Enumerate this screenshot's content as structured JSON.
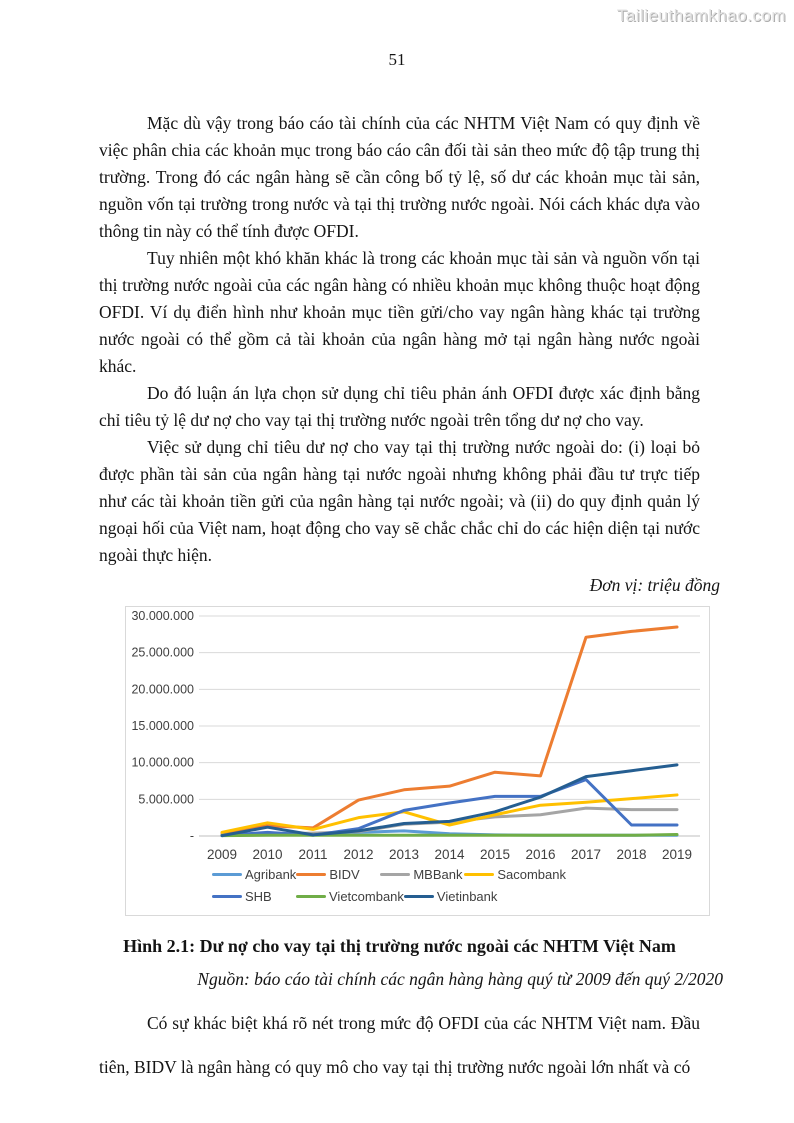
{
  "watermark": "Tailieuthamkhao.com",
  "page_number": "51",
  "paragraphs": [
    "Mặc dù vậy trong báo cáo tài chính của các NHTM Việt Nam có quy định về việc phân chia các khoản mục trong báo cáo cân đối tài sản theo mức độ tập trung thị trường. Trong đó các ngân hàng sẽ cần công bố tỷ lệ, số dư các khoản mục tài sản, nguồn vốn tại trường trong nước và tại thị trường nước ngoài. Nói cách khác dựa vào thông tin này có thể tính được OFDI.",
    "Tuy nhiên một khó khăn khác là trong các khoản mục tài sản và nguồn vốn tại thị trường nước ngoài của các ngân hàng có nhiều khoản mục không thuộc hoạt động OFDI. Ví dụ điển hình như khoản mục tiền gửi/cho vay ngân hàng khác tại trường nước ngoài có thể gồm cả tài khoản của ngân hàng mở tại ngân hàng nước ngoài khác.",
    "Do đó luận án lựa chọn sử dụng chỉ tiêu phản ánh OFDI được xác định bằng chỉ tiêu tỷ lệ dư nợ cho vay tại thị trường nước ngoài trên tổng dư nợ cho vay.",
    "Việc sử dụng chỉ tiêu dư nợ cho vay tại thị trường nước ngoài do: (i) loại bỏ được phần tài sản của ngân hàng tại nước ngoài nhưng không phải đầu tư trực tiếp như các tài khoản tiền gửi của ngân hàng tại nước ngoài; và (ii) do quy định quản lý ngoại hối của Việt nam, hoạt động cho vay sẽ chắc chắc chỉ do các hiện diện tại nước ngoài thực hiện."
  ],
  "unit_note": "Đơn vị: triệu đồng",
  "figure": {
    "caption": "Hình 2.1: Dư nợ cho vay tại thị trường nước ngoài các NHTM Việt Nam",
    "source": "Nguồn: báo cáo tài chính các ngân hàng hàng quý từ 2009 đến quý 2/2020"
  },
  "closing_paragraph": "Có sự khác biệt khá rõ nét trong mức độ OFDI của các NHTM Việt nam. Đầu tiên, BIDV là ngân hàng có quy mô cho vay tại thị trường nước ngoài lớn nhất và có",
  "chart_data": {
    "type": "line",
    "title": "",
    "xlabel": "",
    "ylabel": "",
    "categories": [
      "2009",
      "2010",
      "2011",
      "2012",
      "2013",
      "2014",
      "2015",
      "2016",
      "2017",
      "2018",
      "2019"
    ],
    "ylim": [
      0,
      30000000
    ],
    "grid": true,
    "legend_position": "bottom",
    "y_ticks": [
      {
        "value": 0,
        "label": "-"
      },
      {
        "value": 5000000,
        "label": "5.000.000"
      },
      {
        "value": 10000000,
        "label": "10.000.000"
      },
      {
        "value": 15000000,
        "label": "15.000.000"
      },
      {
        "value": 20000000,
        "label": "20.000.000"
      },
      {
        "value": 25000000,
        "label": "25.000.000"
      },
      {
        "value": 30000000,
        "label": "30.000.000"
      }
    ],
    "series": [
      {
        "name": "Agribank",
        "color": "#5B9BD5",
        "values": [
          100000,
          400000,
          300000,
          500000,
          700000,
          300000,
          150000,
          100000,
          100000,
          100000,
          100000
        ]
      },
      {
        "name": "BIDV",
        "color": "#ED7D31",
        "values": [
          400000,
          1400000,
          1100000,
          4900000,
          6300000,
          6800000,
          8700000,
          8200000,
          27100000,
          27900000,
          28500000
        ]
      },
      {
        "name": "MBBank",
        "color": "#A5A5A5",
        "values": [
          150000,
          300000,
          400000,
          600000,
          1600000,
          1900000,
          2600000,
          2900000,
          3800000,
          3600000,
          3600000
        ]
      },
      {
        "name": "Sacombank",
        "color": "#FFC000",
        "values": [
          500000,
          1800000,
          900000,
          2500000,
          3300000,
          1500000,
          2900000,
          4200000,
          4600000,
          5100000,
          5600000
        ]
      },
      {
        "name": "SHB",
        "color": "#4472C4",
        "values": [
          50000,
          500000,
          100000,
          1000000,
          3500000,
          4500000,
          5400000,
          5400000,
          7700000,
          1500000,
          1500000
        ]
      },
      {
        "name": "Vietcombank",
        "color": "#70AD47",
        "values": [
          50000,
          100000,
          100000,
          100000,
          100000,
          100000,
          100000,
          100000,
          100000,
          100000,
          200000
        ]
      },
      {
        "name": "Vietinbank",
        "color": "#255E91",
        "values": [
          50000,
          1200000,
          150000,
          700000,
          1700000,
          2000000,
          3300000,
          5300000,
          8100000,
          8900000,
          9700000
        ]
      }
    ],
    "colors": {
      "gridline": "#d9d9d9",
      "axis_line": "#bfbfbf",
      "tick_text": "#404040"
    }
  }
}
